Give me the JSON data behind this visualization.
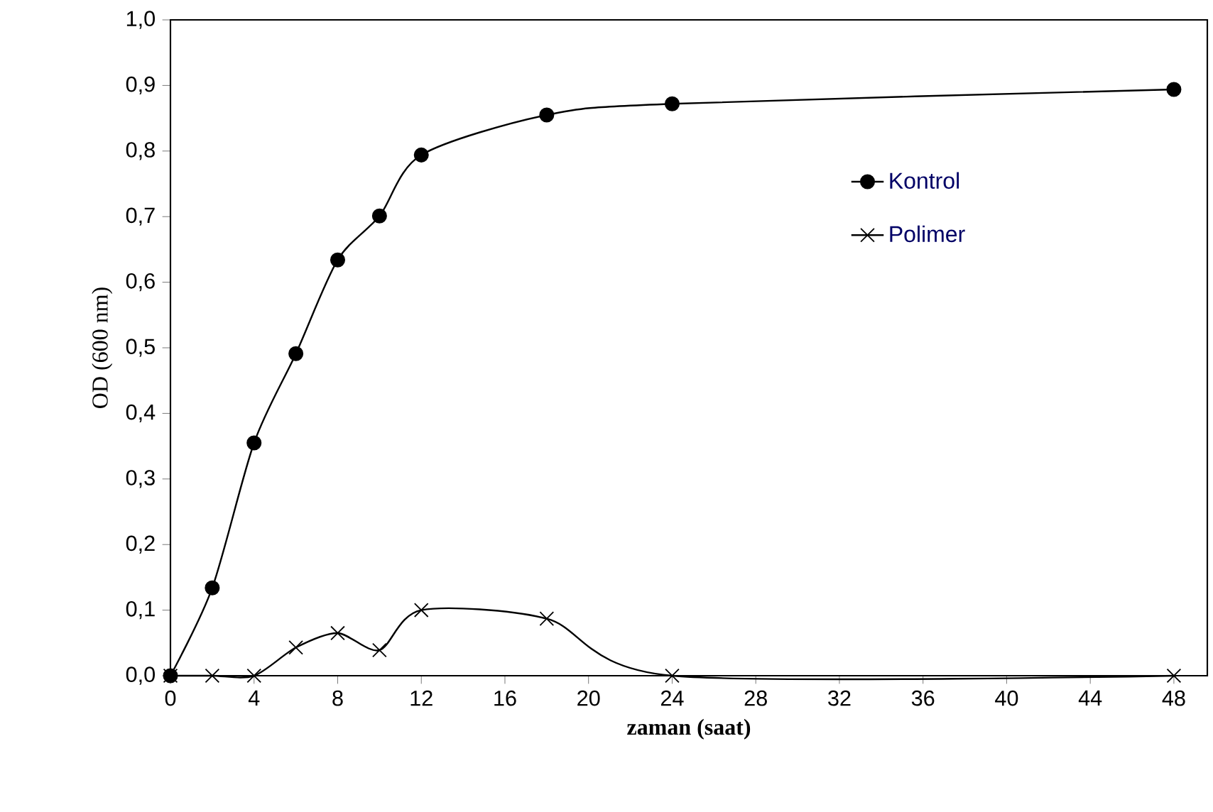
{
  "chart_data": {
    "type": "line",
    "xlabel": "zaman (saat)",
    "ylabel": "OD (600 nm)",
    "xlim": [
      0,
      49.6
    ],
    "xticks": [
      0,
      4,
      8,
      12,
      16,
      20,
      24,
      28,
      32,
      36,
      40,
      44,
      48
    ],
    "ylim": [
      0,
      1
    ],
    "yticks": [
      {
        "value": 0,
        "label": "0,0"
      },
      {
        "value": 0.1,
        "label": "0,1"
      },
      {
        "value": 0.2,
        "label": "0,2"
      },
      {
        "value": 0.3,
        "label": "0,3"
      },
      {
        "value": 0.4,
        "label": "0,4"
      },
      {
        "value": 0.5,
        "label": "0,5"
      },
      {
        "value": 0.6,
        "label": "0,6"
      },
      {
        "value": 0.7,
        "label": "0,7"
      },
      {
        "value": 0.8,
        "label": "0,8"
      },
      {
        "value": 0.9,
        "label": "0,9"
      },
      {
        "value": 1,
        "label": "1,0"
      }
    ],
    "x": [
      0,
      2,
      4,
      6,
      8,
      10,
      12,
      18,
      24,
      48
    ],
    "series": [
      {
        "name": "Kontrol",
        "color": "#000000",
        "marker": "circle",
        "values": [
          0.0,
          0.134,
          0.355,
          0.491,
          0.634,
          0.701,
          0.794,
          0.855,
          0.872,
          0.894
        ]
      },
      {
        "name": "Polimer",
        "color": "#000000",
        "marker": "cross",
        "values": [
          0.0,
          0.0,
          0.0,
          0.043,
          0.065,
          0.039,
          0.1,
          0.087,
          0.0,
          0.0
        ]
      }
    ],
    "grid": false,
    "legend": "top right",
    "line_style": "solid"
  }
}
